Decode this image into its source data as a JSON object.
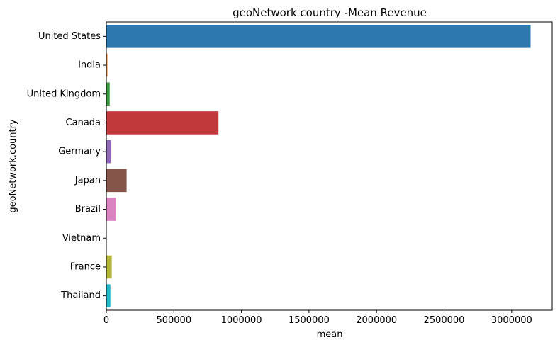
{
  "chart_data": {
    "type": "bar",
    "orientation": "horizontal",
    "title": "geoNetwork country -Mean Revenue",
    "xlabel": "mean",
    "ylabel": "geoNetwork.country",
    "categories": [
      "United States",
      "India",
      "United Kingdom",
      "Canada",
      "Germany",
      "Japan",
      "Brazil",
      "Vietnam",
      "France",
      "Thailand"
    ],
    "values": [
      3140000,
      8000,
      25000,
      830000,
      37000,
      150000,
      70000,
      1500,
      40000,
      30000
    ],
    "bar_colors": [
      "#2e78b0",
      "#e08033",
      "#3a9a3a",
      "#c0393b",
      "#9068b8",
      "#865549",
      "#d985c2",
      "#7f7f7f",
      "#b3b43a",
      "#22b5c8"
    ],
    "xlim": [
      0,
      3300000
    ],
    "xticks": [
      0,
      500000,
      1000000,
      1500000,
      2000000,
      2500000,
      3000000
    ],
    "xtick_labels": [
      "0",
      "500000",
      "1000000",
      "1500000",
      "2000000",
      "2500000",
      "3000000"
    ],
    "grid": false,
    "legend": "none"
  }
}
